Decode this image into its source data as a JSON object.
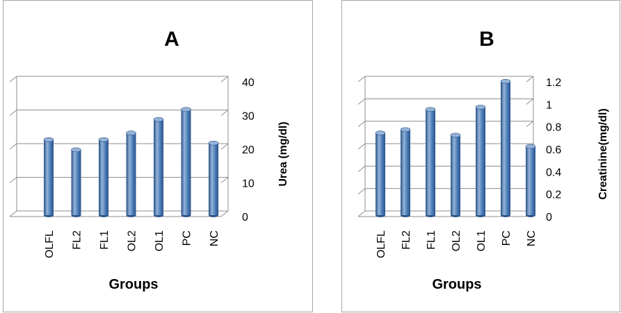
{
  "colors": {
    "bar_main": "#4f81bd",
    "bar_dark": "#2a5288",
    "bar_light": "#95b3d7",
    "grid": "#8c8c8c",
    "frame": "#a6a6a6",
    "text": "#000000"
  },
  "chart_data": [
    {
      "type": "bar",
      "title": "A",
      "xlabel": "Groups",
      "ylabel": "Urea (mg/dl)",
      "categories": [
        "OLFL",
        "FL2",
        "FL1",
        "OL2",
        "OL1",
        "PC",
        "NC"
      ],
      "values": [
        22,
        19,
        22,
        24,
        28,
        31,
        21
      ],
      "ylim": [
        0,
        40
      ],
      "yticks": [
        "0",
        "10",
        "20",
        "30",
        "40"
      ],
      "grid": true,
      "axis_side": "right"
    },
    {
      "type": "bar",
      "title": "B",
      "xlabel": "Groups",
      "ylabel": "Creatinine(mg/dl)",
      "categories": [
        "OLFL",
        "FL2",
        "FL1",
        "OL2",
        "OL1",
        "PC",
        "NC"
      ],
      "values": [
        0.72,
        0.75,
        0.93,
        0.7,
        0.95,
        1.18,
        0.6
      ],
      "ylim": [
        0,
        1.2
      ],
      "yticks": [
        "0",
        "0.2",
        "0.4",
        "0.6",
        "0.8",
        "1",
        "1.2"
      ],
      "grid": true,
      "axis_side": "right"
    }
  ]
}
